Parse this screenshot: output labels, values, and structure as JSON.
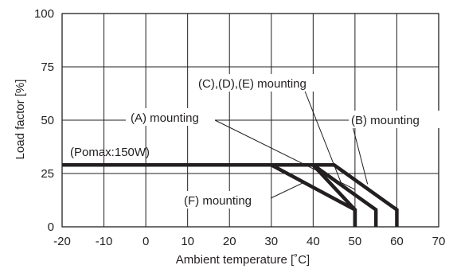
{
  "chart_data": {
    "type": "line",
    "xlabel": "Ambient temperature [˚C]",
    "ylabel": "Load factor [%]",
    "xlim": [
      -20,
      70
    ],
    "ylim": [
      0,
      100
    ],
    "x_ticks": [
      "-20",
      "-10",
      "0",
      "10",
      "20",
      "30",
      "40",
      "50",
      "60",
      "70"
    ],
    "y_ticks": [
      "0",
      "25",
      "50",
      "75",
      "100"
    ],
    "grid": true,
    "series": [
      {
        "name": "(A) mounting",
        "x": [
          -20,
          40,
          55,
          55
        ],
        "y": [
          29,
          29,
          8,
          0
        ]
      },
      {
        "name": "(B) mounting",
        "x": [
          -20,
          45,
          60,
          60
        ],
        "y": [
          29,
          29,
          8,
          0
        ]
      },
      {
        "name": "(C),(D),(E) mounting",
        "x": [
          -20,
          40,
          50,
          50
        ],
        "y": [
          29,
          29,
          8,
          0
        ]
      },
      {
        "name": "(F) mounting",
        "x": [
          -20,
          30,
          50,
          50
        ],
        "y": [
          29,
          29,
          8,
          0
        ]
      }
    ],
    "annotations": {
      "pomax": "(Pomax:150W)",
      "a_label": "(A) mounting",
      "b_label": "(B) mounting",
      "cde_label": "(C),(D),(E) mounting",
      "f_label": "(F) mounting"
    },
    "colors": {
      "line": "#231f20",
      "grid": "#231f20",
      "text": "#231f20"
    }
  }
}
